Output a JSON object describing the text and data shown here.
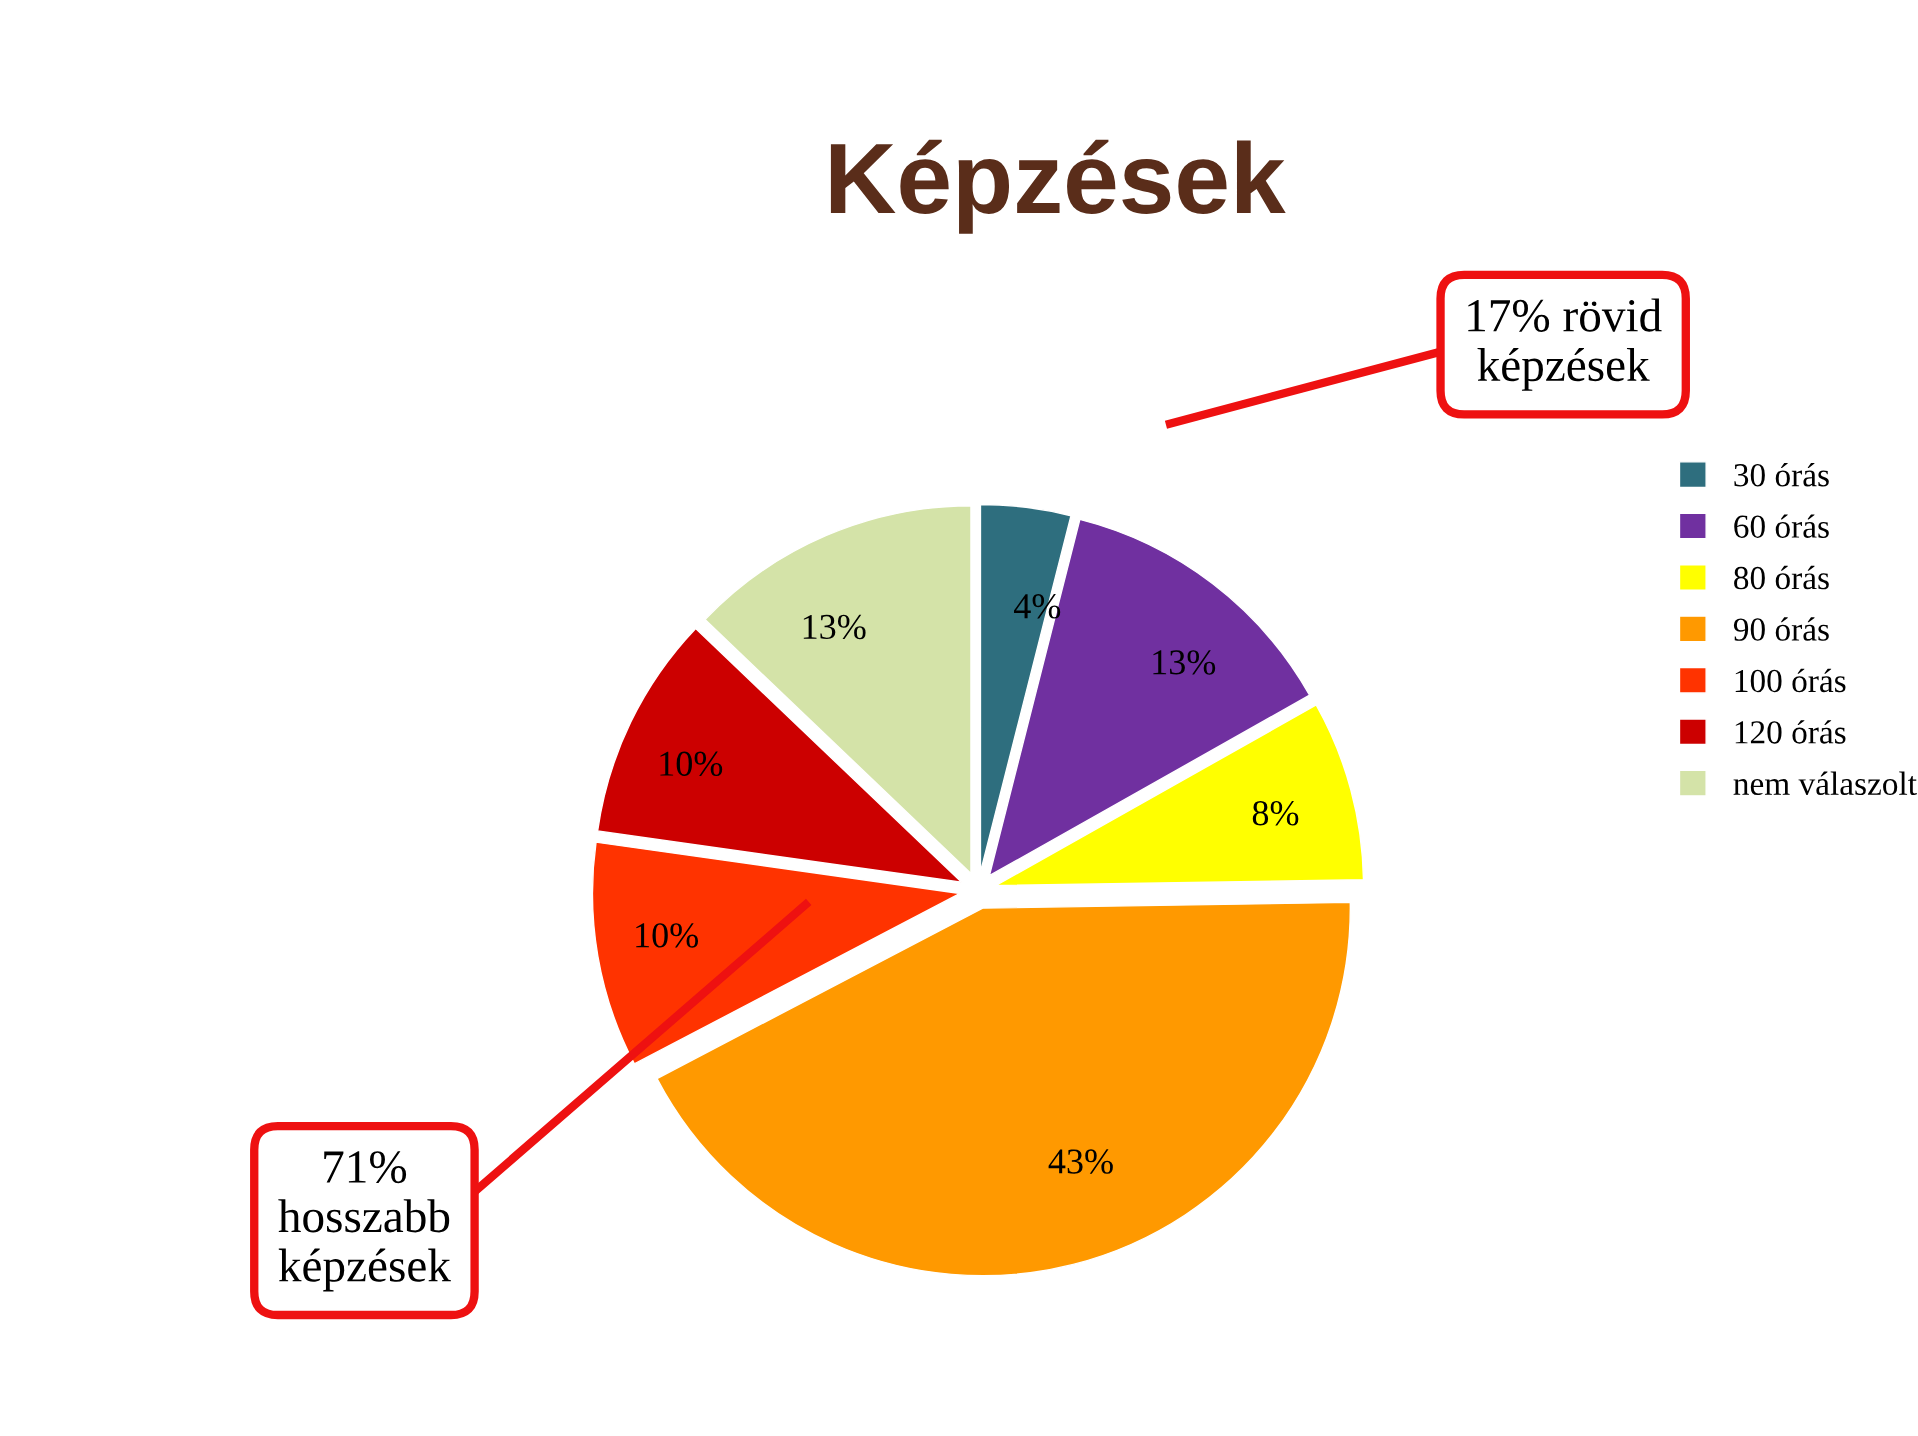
{
  "chart_data": {
    "type": "pie",
    "title": "Képzések",
    "categories": [
      "30 órás",
      "60 órás",
      "80 órás",
      "90 órás",
      "100 órás",
      "120 órás",
      "nem válaszolt"
    ],
    "values": [
      4,
      13,
      8,
      43,
      10,
      10,
      13
    ],
    "value_labels": [
      "4%",
      "13%",
      "8%",
      "43%",
      "10%",
      "10%",
      "13%"
    ],
    "colors": [
      "#2e6e7e",
      "#7030a0",
      "#ffff00",
      "#ff9900",
      "#ff3300",
      "#cc0000",
      "#d4e3a8"
    ],
    "legend": "right",
    "annotations": [
      "17% rövid\nképzések",
      "71%\nhosszabb\nképzések"
    ]
  }
}
